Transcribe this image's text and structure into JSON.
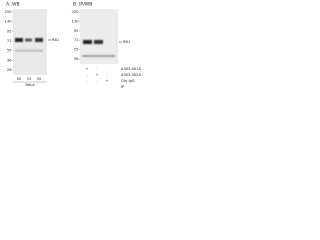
{
  "panels": [
    {
      "label": "A. WB",
      "markers": [
        "250",
        "130",
        "95",
        "72",
        "55",
        "36",
        "28"
      ],
      "target": "RB1",
      "lanes": [
        "50",
        "15",
        "50"
      ],
      "sample": "HeLa"
    },
    {
      "label": "B. IP/WB",
      "markers": [
        "250",
        "130",
        "95",
        "72",
        "55",
        "36"
      ],
      "target": "RB1",
      "rows": [
        {
          "cells": [
            "+",
            "-",
            "-"
          ],
          "label": "A303-001A"
        },
        {
          "cells": [
            "-",
            "+",
            "-"
          ],
          "label": "A303-002A"
        },
        {
          "cells": [
            "-",
            "-",
            "+"
          ],
          "label": "Ctrl IgG"
        }
      ],
      "footer": "IP"
    }
  ]
}
